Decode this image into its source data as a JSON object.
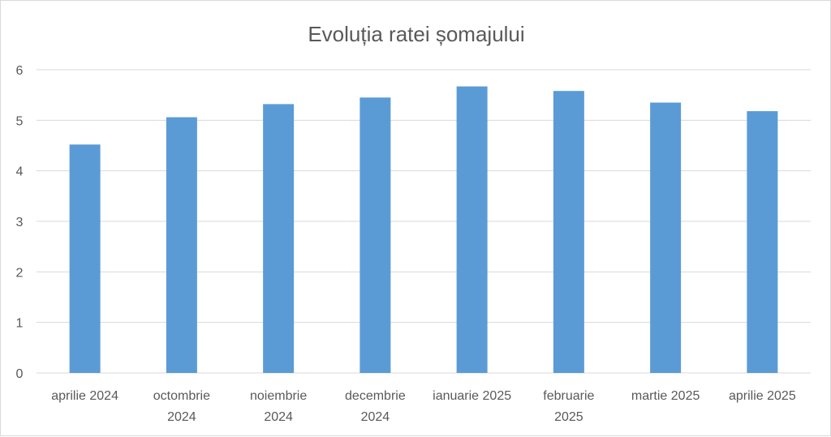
{
  "chart_data": {
    "type": "bar",
    "title": "Evoluția ratei șomajului",
    "xlabel": "",
    "ylabel": "",
    "categories": [
      [
        "aprilie 2024"
      ],
      [
        "octombrie",
        "2024"
      ],
      [
        "noiembrie",
        "2024"
      ],
      [
        "decembrie",
        "2024"
      ],
      [
        "ianuarie 2025"
      ],
      [
        "februarie",
        "2025"
      ],
      [
        "martie 2025"
      ],
      [
        "aprilie 2025"
      ]
    ],
    "values": [
      4.52,
      5.06,
      5.32,
      5.45,
      5.67,
      5.58,
      5.35,
      5.18
    ],
    "ylim": [
      0,
      6
    ],
    "yticks": [
      "0",
      "1",
      "2",
      "3",
      "4",
      "5",
      "6"
    ],
    "grid": true,
    "legend": "none",
    "bar_color": "#5B9BD5",
    "grid_color": "#d9d9d9"
  }
}
